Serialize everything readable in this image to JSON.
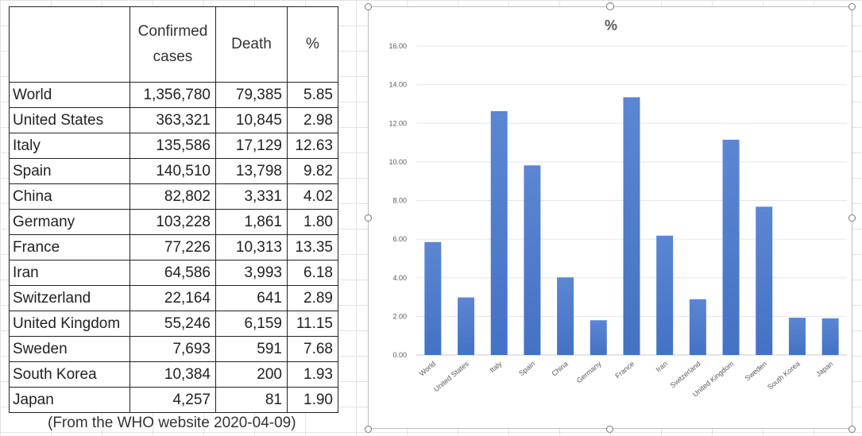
{
  "table": {
    "headers": {
      "name": "",
      "confirmed_line1": "Confirmed",
      "confirmed_line2": "cases",
      "death": "Death",
      "percent": "%"
    },
    "rows": [
      {
        "name": "World",
        "confirmed": "1,356,780",
        "death": "79,385",
        "percent": "5.85"
      },
      {
        "name": "United States",
        "confirmed": "363,321",
        "death": "10,845",
        "percent": "2.98"
      },
      {
        "name": "Italy",
        "confirmed": "135,586",
        "death": "17,129",
        "percent": "12.63"
      },
      {
        "name": "Spain",
        "confirmed": "140,510",
        "death": "13,798",
        "percent": "9.82"
      },
      {
        "name": "China",
        "confirmed": "82,802",
        "death": "3,331",
        "percent": "4.02"
      },
      {
        "name": "Germany",
        "confirmed": "103,228",
        "death": "1,861",
        "percent": "1.80"
      },
      {
        "name": "France",
        "confirmed": "77,226",
        "death": "10,313",
        "percent": "13.35"
      },
      {
        "name": "Iran",
        "confirmed": "64,586",
        "death": "3,993",
        "percent": "6.18"
      },
      {
        "name": "Switzerland",
        "confirmed": "22,164",
        "death": "641",
        "percent": "2.89"
      },
      {
        "name": "United Kingdom",
        "confirmed": "55,246",
        "death": "6,159",
        "percent": "11.15"
      },
      {
        "name": "Sweden",
        "confirmed": "7,693",
        "death": "591",
        "percent": "7.68"
      },
      {
        "name": "South Korea",
        "confirmed": "10,384",
        "death": "200",
        "percent": "1.93"
      },
      {
        "name": "Japan",
        "confirmed": "4,257",
        "death": "81",
        "percent": "1.90"
      }
    ],
    "source": "(From the WHO website 2020-04-09)"
  },
  "chart_data": {
    "type": "bar",
    "title": "%",
    "categories": [
      "World",
      "United States",
      "Italy",
      "Spain",
      "China",
      "Germany",
      "France",
      "Iran",
      "Switzerland",
      "United Kingdom",
      "Sweden",
      "South Korea",
      "Japan"
    ],
    "values": [
      5.85,
      2.98,
      12.63,
      9.82,
      4.02,
      1.8,
      13.35,
      6.18,
      2.89,
      11.15,
      7.68,
      1.93,
      1.9
    ],
    "ylim": [
      0,
      16
    ],
    "yticks": [
      "0.00",
      "2.00",
      "4.00",
      "6.00",
      "8.00",
      "10.00",
      "12.00",
      "14.00",
      "16.00"
    ],
    "xlabel": "",
    "ylabel": "",
    "grid": true,
    "bar_color": "#4472c4",
    "bar_color_light": "#5b86d2"
  }
}
